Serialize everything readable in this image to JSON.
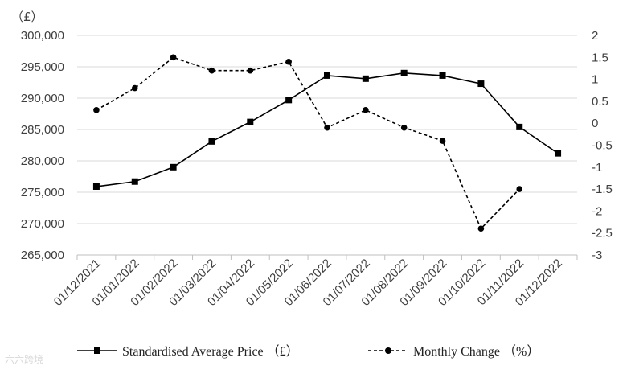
{
  "chart_data": {
    "type": "line",
    "y_unit_label": "（£）",
    "categories": [
      "01/12/2021",
      "01/01/2022",
      "01/02/2022",
      "01/03/2022",
      "01/04/2022",
      "01/05/2022",
      "01/06/2022",
      "01/07/2022",
      "01/08/2022",
      "01/09/2022",
      "01/10/2022",
      "01/11/2022",
      "01/12/2022"
    ],
    "ylim": [
      265000,
      300000
    ],
    "y_ticks": [
      "265,000",
      "270,000",
      "275,000",
      "280,000",
      "285,000",
      "290,000",
      "295,000",
      "300,000"
    ],
    "y2lim": [
      -3,
      2
    ],
    "y2_ticks": [
      "-3",
      "-2.5",
      "-2",
      "-1.5",
      "-1",
      "-0.5",
      "0",
      "0.5",
      "1",
      "1.5",
      "2"
    ],
    "series": [
      {
        "name": "Standardised Average Price （£）",
        "axis": "left",
        "style": "solid",
        "marker": "square",
        "color": "#000000",
        "values": [
          275900,
          276700,
          279000,
          283100,
          286200,
          289700,
          293600,
          293100,
          294000,
          293600,
          292300,
          285400,
          281200
        ]
      },
      {
        "name": "Monthly Change （%）",
        "axis": "right",
        "style": "dashed",
        "marker": "circle",
        "color": "#000000",
        "values": [
          0.3,
          0.8,
          1.5,
          1.2,
          1.2,
          1.4,
          -0.1,
          0.3,
          -0.1,
          -0.4,
          -2.4,
          -1.5,
          null
        ]
      }
    ],
    "grid": true,
    "legend": "bottom"
  },
  "watermark": "六六跨境"
}
